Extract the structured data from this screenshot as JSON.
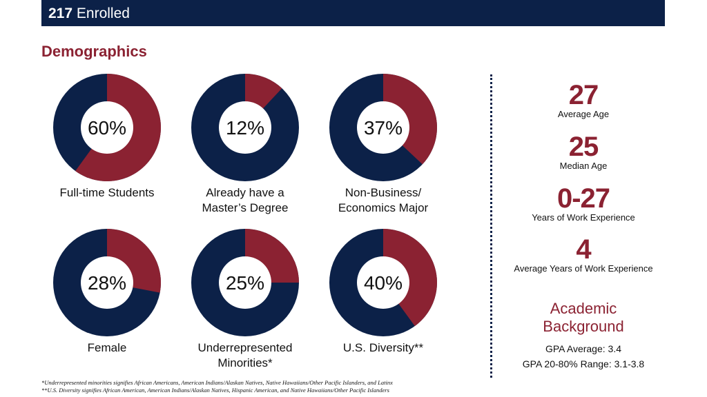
{
  "header": {
    "count": "217",
    "label": "Enrolled"
  },
  "title": "Demographics",
  "colors": {
    "accent": "#8b2232",
    "base": "#0c2148"
  },
  "chart_data": [
    {
      "type": "pie",
      "label": "Full-time Students",
      "value": 60,
      "text": "60%"
    },
    {
      "type": "pie",
      "label": "Already have a\nMaster’s Degree",
      "value": 12,
      "text": "12%"
    },
    {
      "type": "pie",
      "label": "Non-Business/\nEconomics Major",
      "value": 37,
      "text": "37%"
    },
    {
      "type": "pie",
      "label": "Female",
      "value": 28,
      "text": "28%"
    },
    {
      "type": "pie",
      "label": "Underrepresented\nMinorities*",
      "value": 25,
      "text": "25%"
    },
    {
      "type": "pie",
      "label": "U.S. Diversity**",
      "value": 40,
      "text": "40%"
    }
  ],
  "stats": [
    {
      "value": "27",
      "label": "Average Age"
    },
    {
      "value": "25",
      "label": "Median Age"
    },
    {
      "value": "0-27",
      "label": "Years of Work Experience"
    },
    {
      "value": "4",
      "label": "Average Years of Work Experience"
    }
  ],
  "academic": {
    "heading1": "Academic",
    "heading2": "Background",
    "gpa_avg": "GPA Average: 3.4",
    "gpa_range": "GPA 20-80% Range: 3.1-3.8"
  },
  "footnotes": [
    "*Underrepresented minorities signifies African Americans, American Indians/Alaskan Natives, Native Hawaiians/Other Pacific Islanders, and Latinx",
    "**U.S. Diversity signifies African American,  American Indians/Alaskan Natives, Hispanic American, and Native Hawaiians/Other Pacific Islanders"
  ]
}
